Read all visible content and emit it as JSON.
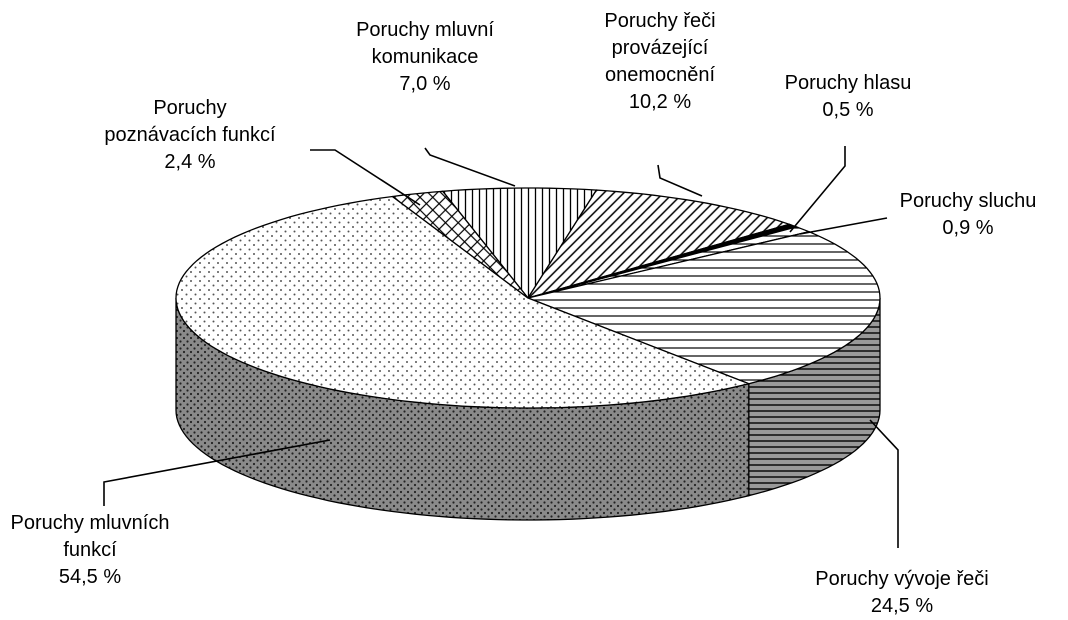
{
  "chart_data": {
    "type": "pie",
    "style": "3d",
    "categories": [
      "Poruchy mluvní komunikace",
      "Poruchy řeči provázející onemocnění",
      "Poruchy hlasu",
      "Poruchy sluchu",
      "Poruchy vývoje řeči",
      "Poruchy mluvních funkcí",
      "Poruchy poznávacích funkcí"
    ],
    "values": [
      7.0,
      10.2,
      0.5,
      0.9,
      24.5,
      54.5,
      2.4
    ],
    "value_labels": [
      "7,0 %",
      "10,2 %",
      "0,5 %",
      "0,9 %",
      "24,5 %",
      "54,5 %",
      "2,4 %"
    ]
  }
}
